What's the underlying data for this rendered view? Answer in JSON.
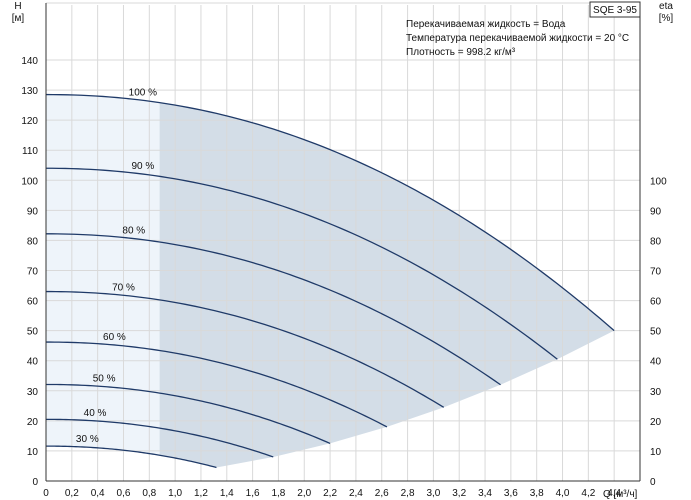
{
  "chart_data": {
    "type": "line",
    "title": "SQE 3-95",
    "ylabel_left": [
      "H",
      "[м]"
    ],
    "ylabel_right": [
      "eta",
      "[%]"
    ],
    "xlabel": "Q [м³/ч]",
    "xlim": [
      0,
      4.6
    ],
    "ylim_left": [
      0,
      150
    ],
    "ylim_right_ticks": [
      0,
      100
    ],
    "x_ticks": [
      "0",
      "0,2",
      "0,4",
      "0,6",
      "0,8",
      "1,0",
      "1,2",
      "1,4",
      "1,6",
      "1,8",
      "2,0",
      "2,2",
      "2,4",
      "2,6",
      "2,8",
      "3,0",
      "3,2",
      "3,4",
      "3,6",
      "3,8",
      "4,0",
      "4,2",
      "4,4",
      "4,6"
    ],
    "y_ticks_left": [
      "0",
      "10",
      "20",
      "30",
      "40",
      "50",
      "60",
      "70",
      "80",
      "90",
      "100",
      "110",
      "120",
      "130",
      "140"
    ],
    "y_ticks_right": [
      "0",
      "10",
      "20",
      "30",
      "40",
      "50",
      "60",
      "70",
      "80",
      "90",
      "100"
    ],
    "info_lines": [
      "Перекачиваемая жидкость = Вода",
      "Температура перекачиваемой жидкости = 20 °C",
      "Плотность = 998.2 кг/м³"
    ],
    "grid": true,
    "operating_range": {
      "q_min": 0.88
    },
    "colors": {
      "curve": "#1f3a68",
      "region_main": "#d3dde7",
      "region_low": "#eef4fa",
      "grid": "#d9d9d9"
    },
    "series": [
      {
        "name": "100 %",
        "h0": 128.5,
        "q_end": 4.4,
        "h_end": 50,
        "label_q": 0.75
      },
      {
        "name": "90 %",
        "h0": 104,
        "q_end": 3.96,
        "h_end": 40.5,
        "label_q": 0.75
      },
      {
        "name": "80 %",
        "h0": 82.2,
        "q_end": 3.52,
        "h_end": 32,
        "label_q": 0.68
      },
      {
        "name": "70 %",
        "h0": 63,
        "q_end": 3.08,
        "h_end": 24.5,
        "label_q": 0.6
      },
      {
        "name": "60 %",
        "h0": 46.2,
        "q_end": 2.64,
        "h_end": 18,
        "label_q": 0.53
      },
      {
        "name": "50 %",
        "h0": 32.1,
        "q_end": 2.2,
        "h_end": 12.5,
        "label_q": 0.45
      },
      {
        "name": "40 %",
        "h0": 20.5,
        "q_end": 1.76,
        "h_end": 8,
        "label_q": 0.38
      },
      {
        "name": "30 %",
        "h0": 11.6,
        "q_end": 1.32,
        "h_end": 4.5,
        "label_q": 0.32
      }
    ]
  }
}
